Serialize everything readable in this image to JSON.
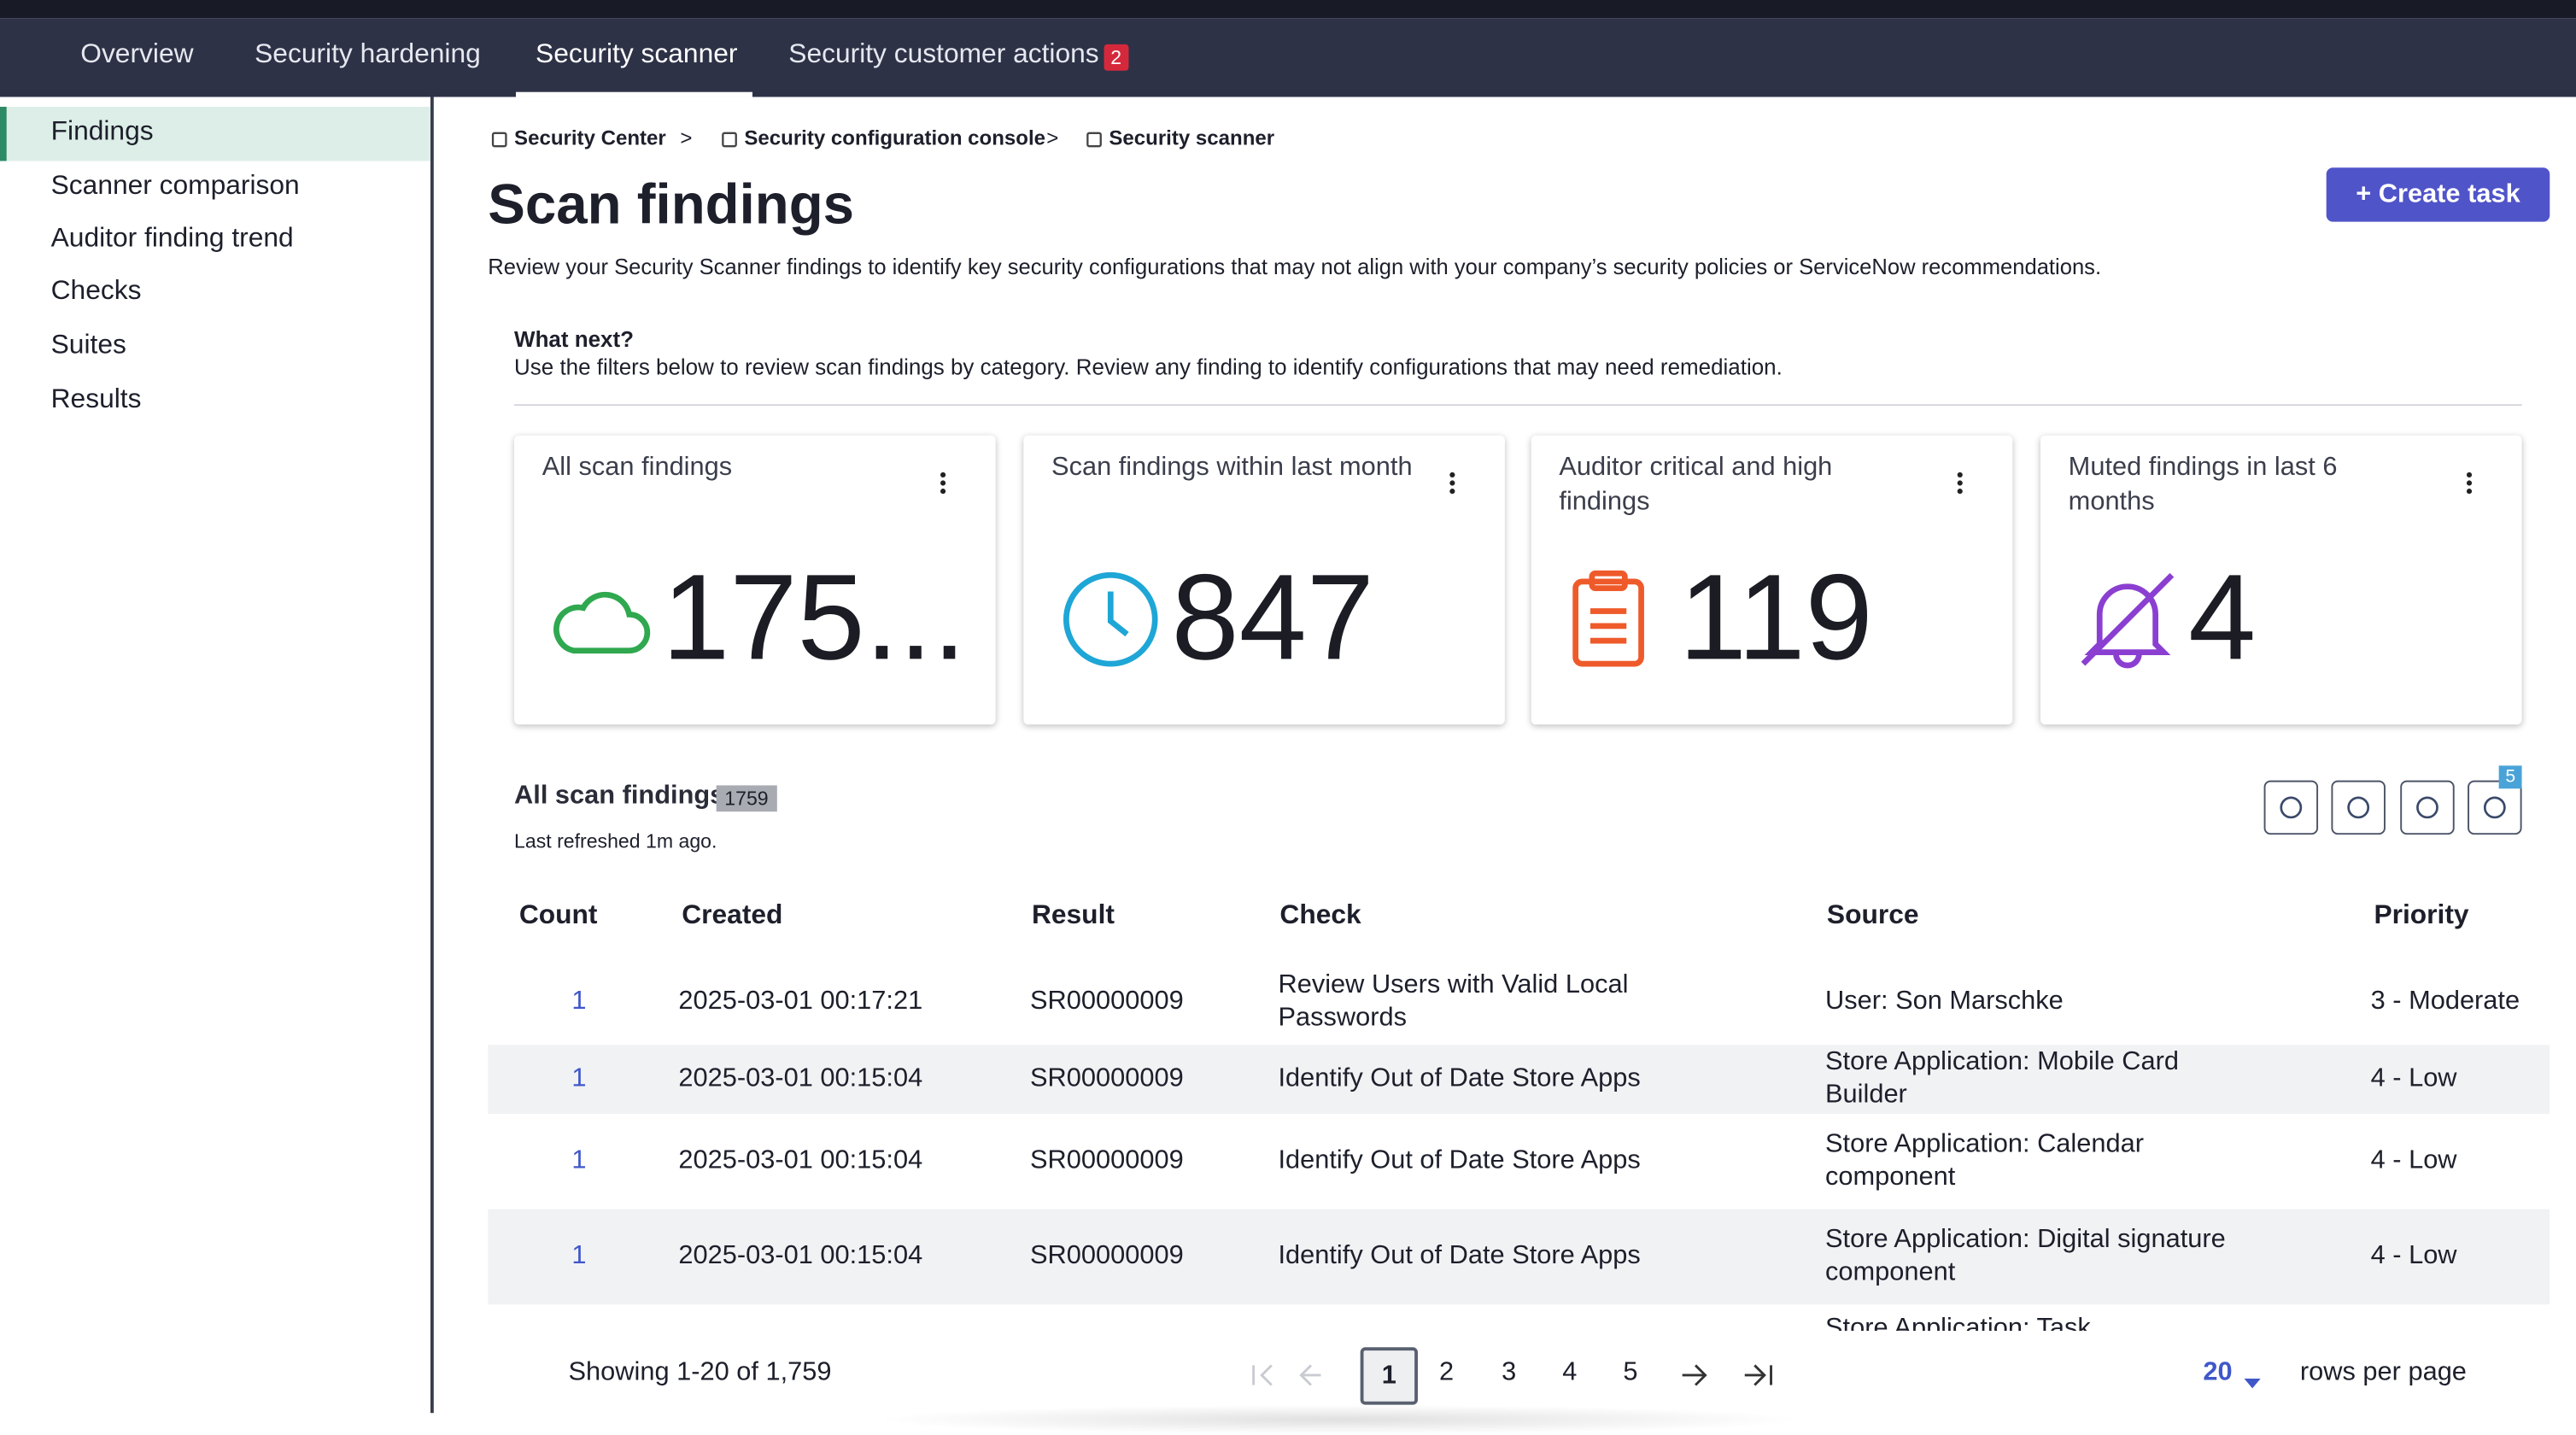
{
  "tabs": [
    "Overview",
    "Security hardening",
    "Security scanner",
    "Security customer actions"
  ],
  "tab_badge": "2",
  "sidebar": [
    "Findings",
    "Scanner comparison",
    "Auditor finding trend",
    "Checks",
    "Suites",
    "Results"
  ],
  "breadcrumbs": [
    "Security Center",
    "Security configuration console",
    "Security scanner"
  ],
  "title": "Scan findings",
  "create_button": "Create task",
  "description": "Review your Security Scanner findings to identify key security configurations that may not align with your company’s security policies or ServiceNow recommendations.",
  "what_next": {
    "heading": "What next?",
    "text": "Use the filters below to review scan findings by category. Review any finding to identify configurations that may need remediation."
  },
  "cards": [
    {
      "title": "All scan findings",
      "value": "175..."
    },
    {
      "title": "Scan findings within last month",
      "value": "847"
    },
    {
      "title": "Auditor critical and high findings",
      "value": "119"
    },
    {
      "title": "Muted findings in last 6 months",
      "value": "4"
    }
  ],
  "table": {
    "title": "All scan findings",
    "count_badge": "1759",
    "refreshed": "Last refreshed 1m ago.",
    "filter_badge": "5",
    "columns": [
      "Count",
      "Created",
      "Result",
      "Check",
      "Source",
      "Priority"
    ],
    "rows": [
      [
        "1",
        "2025-03-01 00:17:21",
        "SR00000009",
        "Review Users with Valid Local Passwords",
        "User: Son Marschke",
        "3 - Moderate"
      ],
      [
        "1",
        "2025-03-01 00:15:04",
        "SR00000009",
        "Identify Out of Date Store Apps",
        "Store Application: Mobile Card Builder",
        "4 - Low"
      ],
      [
        "1",
        "2025-03-01 00:15:04",
        "SR00000009",
        "Identify Out of Date Store Apps",
        "Store Application: Calendar component",
        "4 - Low"
      ],
      [
        "1",
        "2025-03-01 00:15:04",
        "SR00000009",
        "Identify Out of Date Store Apps",
        "Store Application: Digital signature component",
        "4 - Low"
      ]
    ],
    "partial_source": "Store Application: Task"
  },
  "pagination": {
    "showing": "Showing 1-20 of 1,759",
    "pages": [
      "1",
      "2",
      "3",
      "4",
      "5"
    ],
    "per_page": "20",
    "per_page_label": "rows per page"
  }
}
